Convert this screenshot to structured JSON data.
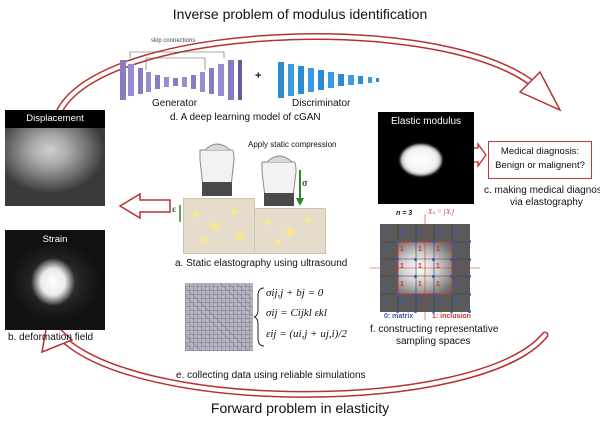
{
  "titles": {
    "top": "Inverse problem of modulus identification",
    "bottom": "Forward problem in elasticity"
  },
  "cgan": {
    "generator_label": "Generator",
    "discriminator_label": "Discriminator",
    "caption": "d. A deep learning model of cGAN",
    "skip_label": "skip connections",
    "plus": "+"
  },
  "displacement": {
    "title": "Displacement"
  },
  "strain": {
    "title": "Strain"
  },
  "deformation_caption": "b. deformation field",
  "elastography": {
    "apply_label": "Apply static compression",
    "sigma_label": "σ",
    "epsilon_label": "ε",
    "caption": "a. Static elastography using ultrasound"
  },
  "elastic": {
    "title": "Elastic modulus"
  },
  "diagnosis": {
    "line1": "Medical diagnosis:",
    "line2": "Benign or malignent?",
    "caption_line1": "c. making medical diagnosis",
    "caption_line2": "via elastography"
  },
  "sampling": {
    "n_label": "n = 3",
    "x_label": "Xₙ = [Xᵢ]",
    "legend_matrix": "0: matrix",
    "legend_inclusion": "1: inclusion",
    "caption_line1": "f. constructing representative",
    "caption_line2": "sampling spaces",
    "grid_values": [
      [
        "0",
        "0",
        "0",
        "0",
        "0"
      ],
      [
        "0",
        "1",
        "1",
        "1",
        "0"
      ],
      [
        "0",
        "1",
        "1",
        "1",
        "0"
      ],
      [
        "0",
        "1",
        "1",
        "1",
        "0"
      ],
      [
        "0",
        "0",
        "0",
        "0",
        "0"
      ]
    ]
  },
  "equations": {
    "eq1": "σij,j + bj = 0",
    "eq2": "σij = Cijkl εkl",
    "eq3": "εij = (ui,j + uj,i)/2"
  },
  "simulation_caption": "e. collecting data using reliable simulations",
  "colors": {
    "arrow": "#b83030",
    "generator_purple": "#8a7bc0",
    "discriminator_blue": "#2a8bd0",
    "dot_blue": "#3a55b0",
    "label_red": "#c33"
  }
}
